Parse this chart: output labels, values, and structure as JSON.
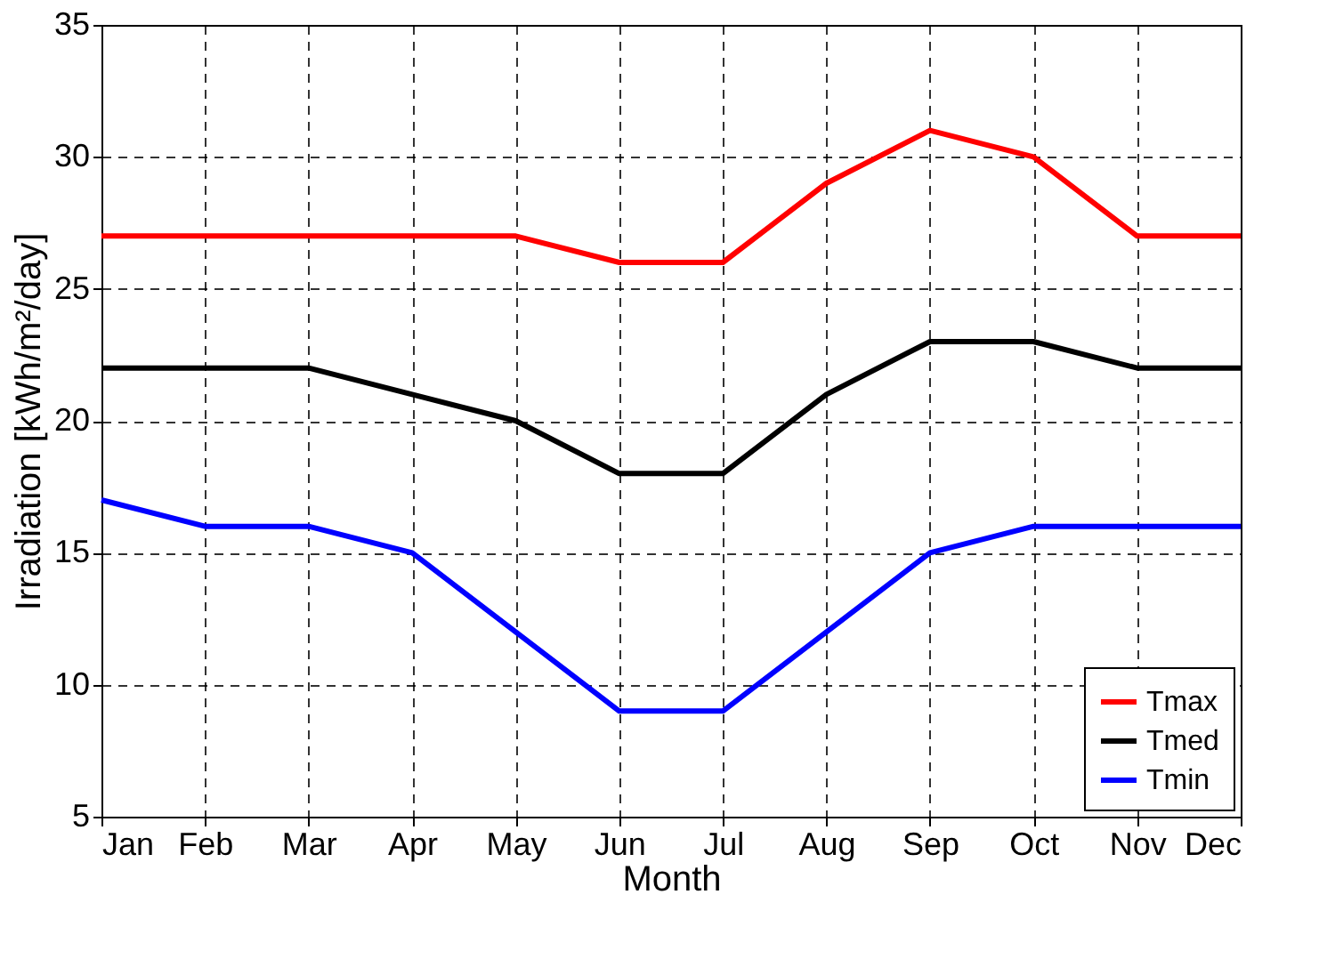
{
  "chart_data": {
    "type": "line",
    "xlabel": "Month",
    "ylabel": "Irradiation [kWh/m²/day]",
    "categories": [
      "Jan",
      "Feb",
      "Mar",
      "Apr",
      "May",
      "Jun",
      "Jul",
      "Aug",
      "Sep",
      "Oct",
      "Nov",
      "Dec"
    ],
    "series": [
      {
        "name": "Tmax",
        "color": "#ff0000",
        "values": [
          27,
          27,
          27,
          27,
          27,
          26,
          26,
          29,
          31,
          30,
          27,
          27
        ]
      },
      {
        "name": "Tmed",
        "color": "#000000",
        "values": [
          22,
          22,
          22,
          21,
          20,
          18,
          18,
          21,
          23,
          23,
          22,
          22
        ]
      },
      {
        "name": "Tmin",
        "color": "#0000ff",
        "values": [
          17,
          16,
          16,
          15,
          12,
          9,
          9,
          12,
          15,
          16,
          16,
          16
        ]
      }
    ],
    "ylim": [
      5,
      35
    ],
    "yticks": [
      5,
      10,
      15,
      20,
      25,
      30,
      35
    ],
    "grid": true,
    "legend": "bottom right"
  }
}
